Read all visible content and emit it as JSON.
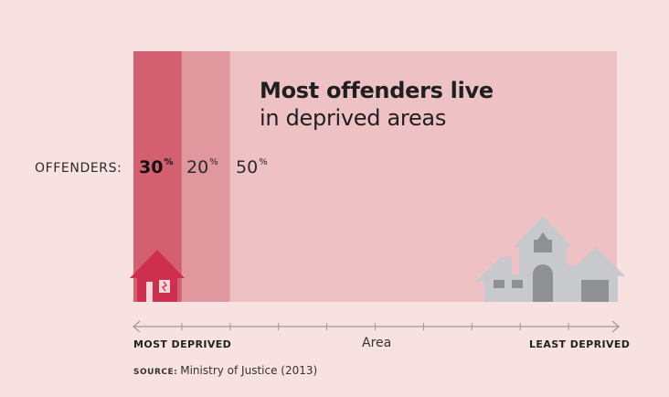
{
  "chart_data": {
    "type": "bar",
    "title": "Most offenders live",
    "subtitle": "in deprived areas",
    "row_label": "OFFENDERS:",
    "segments": [
      {
        "name": "most-deprived",
        "value": 30,
        "value_label": "30",
        "emphasis": true,
        "area_span": 1
      },
      {
        "name": "next-deprived",
        "value": 20,
        "value_label": "20",
        "emphasis": false,
        "area_span": 1
      },
      {
        "name": "rest",
        "value": 50,
        "value_label": "50",
        "emphasis": false,
        "area_span": 8
      }
    ],
    "unit": "%",
    "x_axis": {
      "left_label": "MOST DEPRIVED",
      "mid_label": "Area",
      "right_label": "LEAST DEPRIVED",
      "divisions": 10
    },
    "source_key": "SOURCE:",
    "source_text": "Ministry of Justice (2013)"
  },
  "colors": {
    "background": "#f8e1e1",
    "seg1": "#d26070",
    "seg2": "#e0979e",
    "seg3": "#eec2c5",
    "house_red": "#cf2f4f",
    "house_grey": "#c8c9cc",
    "axis": "#9a9a9a"
  },
  "icons": {
    "left_house": "house-icon",
    "right_house": "mansion-icon"
  }
}
